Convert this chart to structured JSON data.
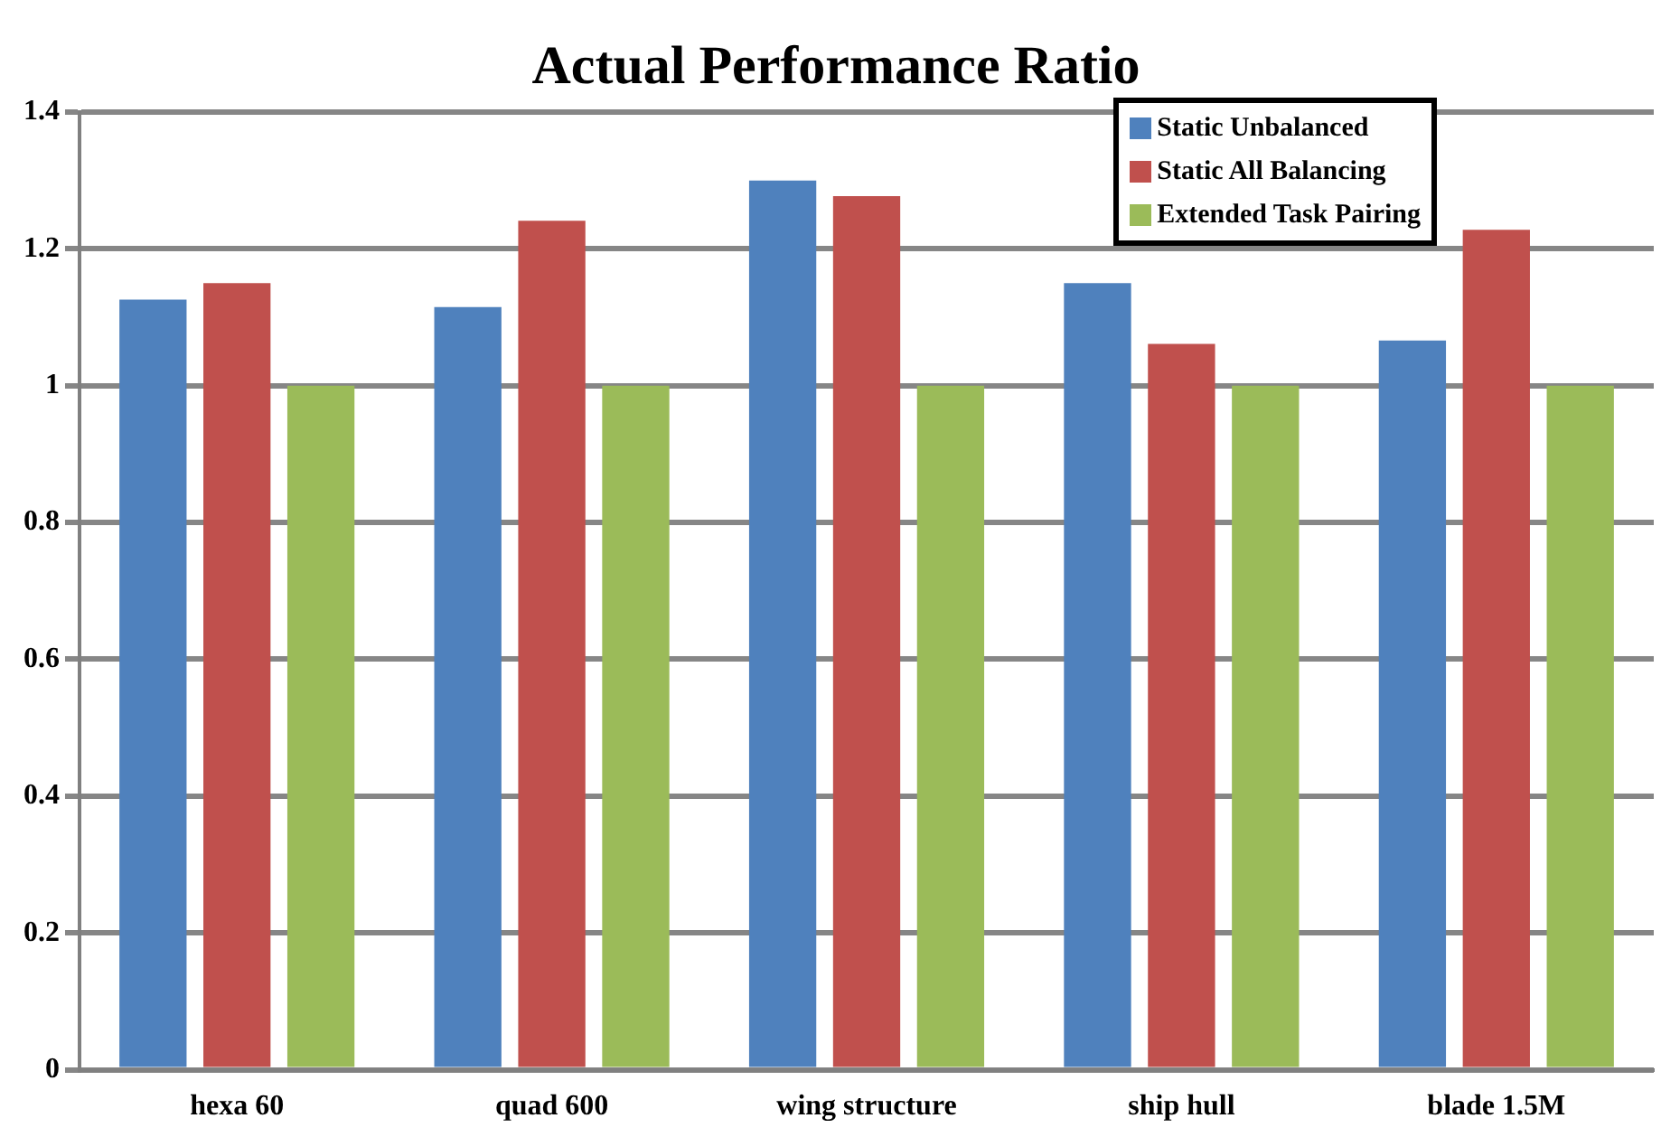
{
  "chart_data": {
    "type": "bar",
    "title": "Actual Performance Ratio",
    "categories": [
      "hexa 60",
      "quad 600",
      "wing structure",
      "ship hull",
      "blade 1.5M"
    ],
    "series": [
      {
        "name": "Static Unbalanced",
        "color": "#4f81bd",
        "values": [
          1.126,
          1.115,
          1.3,
          1.15,
          1.066
        ]
      },
      {
        "name": "Static All Balancing",
        "color": "#c0504d",
        "values": [
          1.15,
          1.241,
          1.277,
          1.061,
          1.228
        ]
      },
      {
        "name": "Extended Task Pairing",
        "color": "#9bbb59",
        "values": [
          1.0,
          1.0,
          1.0,
          1.0,
          1.0
        ]
      }
    ],
    "ylim": [
      0,
      1.4
    ],
    "yticks": [
      0,
      0.2,
      0.4,
      0.6,
      0.8,
      1,
      1.2,
      1.4
    ],
    "grid": "y",
    "legend": "top right"
  }
}
